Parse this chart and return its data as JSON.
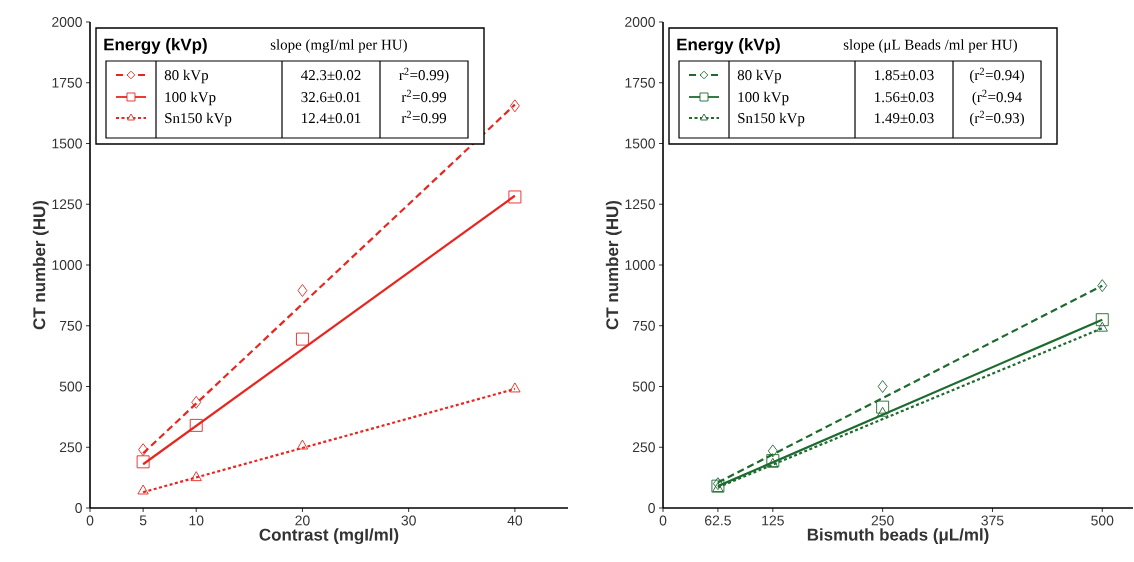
{
  "chart_data": [
    {
      "type": "scatter",
      "xlabel": "Contrast (mgI/ml)",
      "ylabel": "CT number (HU)",
      "legend_title": "Energy (kVp)",
      "legend": "top left",
      "annotations": [
        "slope (mgI/ml per HU)",
        "42.3±0.02",
        "r$^{2}$=0.99)",
        "32.6±0.01",
        "r$^{2}$=0.99",
        "12.4±0.01",
        "r$^{2}$=0.99"
      ],
      "x": [
        5,
        10,
        20,
        40
      ],
      "xlim": [
        0,
        45
      ],
      "xticks": [
        0,
        5,
        10,
        20,
        30,
        40
      ],
      "ylim": [
        0,
        2000
      ],
      "yticks": [
        0,
        250,
        500,
        750,
        1000,
        1250,
        1500,
        1750,
        2000
      ],
      "series": [
        {
          "name": "80 kVp",
          "color": "#e8261f",
          "marker": "diamond",
          "values": [
            240,
            435,
            895,
            1655
          ]
        },
        {
          "name": "100 kVp",
          "color": "#e8261f",
          "marker": "square",
          "values": [
            190,
            340,
            695,
            1280
          ]
        },
        {
          "name": "Sn150 kVp",
          "color": "#e8261f",
          "marker": "triangle",
          "values": [
            70,
            125,
            255,
            490
          ]
        },
        {
          "type": "line",
          "color": "#e8261f",
          "line_style": "dashed",
          "x": [
            5,
            40
          ],
          "values": [
            225,
            1660
          ]
        },
        {
          "type": "line",
          "color": "#e8261f",
          "line_style": "solid",
          "x": [
            5,
            40
          ],
          "values": [
            180,
            1285
          ]
        },
        {
          "type": "line",
          "color": "#e8261f",
          "line_style": "dotted",
          "x": [
            5,
            40
          ],
          "values": [
            65,
            490
          ]
        }
      ]
    },
    {
      "type": "scatter",
      "xlabel": "Bismuth beads (μL/ml)",
      "ylabel": "CT number (HU)",
      "legend_title": "Energy (kVp)",
      "legend": "top left",
      "annotations": [
        "slope (μL Beads /ml per HU)",
        "1.85±0.03",
        "(r$^{2}$=0.94)",
        "1.56±0.03",
        "(r$^{2}$=0.94",
        "1.49±0.03",
        "(r$^{2}$=0.93)"
      ],
      "x": [
        62.5,
        125,
        250,
        500
      ],
      "xlim": [
        0,
        535
      ],
      "xticks": [
        0,
        62.5,
        125,
        250,
        375,
        500
      ],
      "ylim": [
        0,
        2000
      ],
      "yticks": [
        0,
        250,
        500,
        750,
        1000,
        1250,
        1500,
        1750,
        2000
      ],
      "series": [
        {
          "name": "80 kVp",
          "color": "#1e6b30",
          "marker": "diamond",
          "values": [
            100,
            235,
            500,
            915
          ]
        },
        {
          "name": "100 kVp",
          "color": "#1e6b30",
          "marker": "square",
          "values": [
            90,
            195,
            415,
            775
          ]
        },
        {
          "name": "Sn150 kVp",
          "color": "#1e6b30",
          "marker": "triangle",
          "values": [
            80,
            180,
            390,
            740
          ]
        },
        {
          "type": "line",
          "color": "#1e6b30",
          "line_style": "dashed",
          "x": [
            62.5,
            500
          ],
          "values": [
            105,
            915
          ]
        },
        {
          "type": "line",
          "color": "#1e6b30",
          "line_style": "solid",
          "x": [
            62.5,
            500
          ],
          "values": [
            90,
            775
          ]
        },
        {
          "type": "line",
          "color": "#1e6b30",
          "line_style": "dotted",
          "x": [
            62.5,
            500
          ],
          "values": [
            85,
            740
          ]
        }
      ]
    }
  ]
}
